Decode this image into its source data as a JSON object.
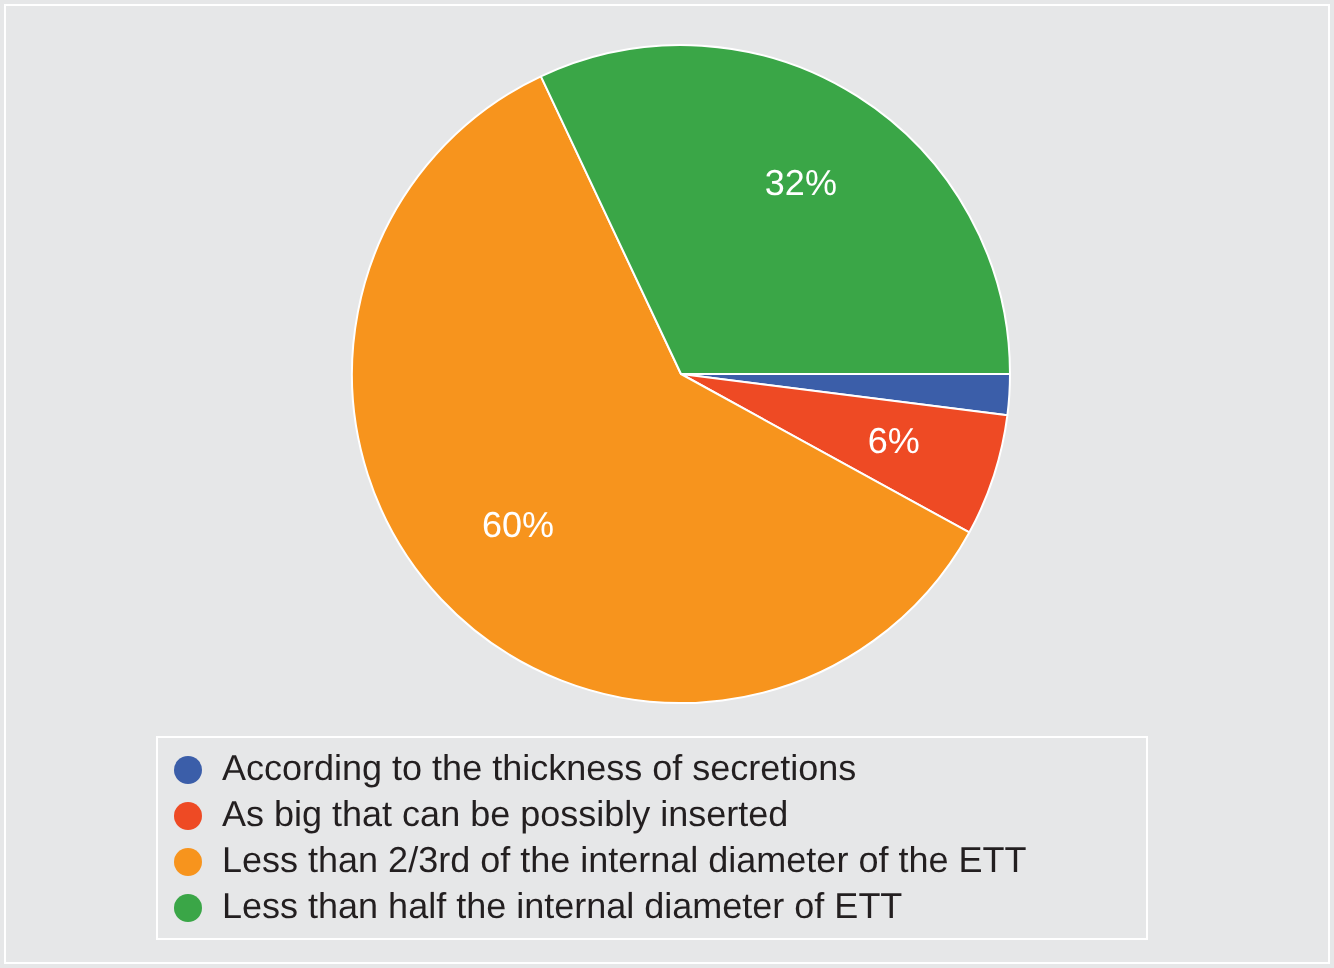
{
  "chart_data": {
    "type": "pie",
    "categories": [
      "According to the thickness of secretions",
      "As big that can be possibly inserted",
      "Less than 2/3rd of the internal diameter of the ETT",
      "Less than half the internal diameter of ETT"
    ],
    "values": [
      2,
      6,
      60,
      32
    ],
    "colors": [
      "#3b5ea9",
      "#ee4a24",
      "#f7941d",
      "#3aa647"
    ],
    "value_labels": [
      null,
      "6%",
      "60%",
      "32%"
    ],
    "legend": "bottom"
  }
}
